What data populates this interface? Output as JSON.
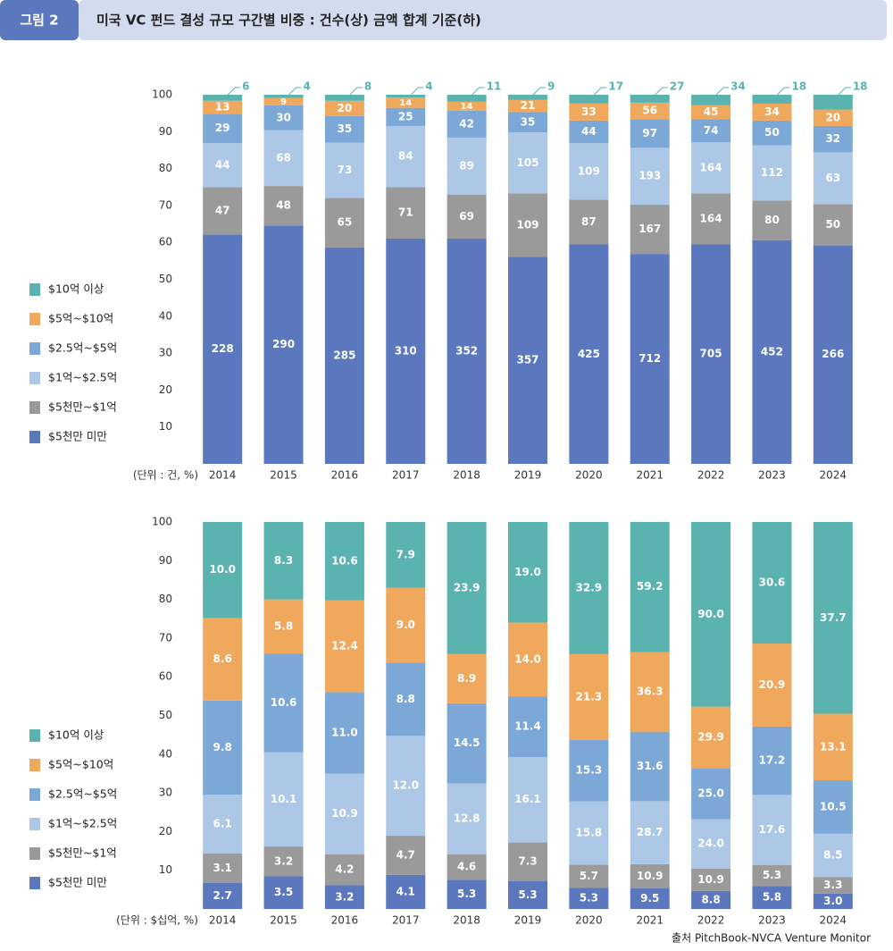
{
  "header": {
    "badge": "그림 2",
    "title": "미국 VC 펀드 결성 규모 구간별 비중 : 건수(상) 금액 합계 기준(하)"
  },
  "chart_data": [
    {
      "type": "bar",
      "stacked": "percent",
      "unit_label": "(단위 : 건, %)",
      "categories": [
        "2014",
        "2015",
        "2016",
        "2017",
        "2018",
        "2019",
        "2020",
        "2021",
        "2022",
        "2023",
        "2024"
      ],
      "ylim": [
        0,
        100
      ],
      "yticks": [
        10,
        20,
        30,
        40,
        50,
        60,
        70,
        80,
        90,
        100
      ],
      "grid": false,
      "series": [
        {
          "name": "$10억 이상",
          "color": "#5bb3b0",
          "values": [
            6,
            4,
            8,
            4,
            11,
            9,
            17,
            27,
            34,
            18,
            18
          ]
        },
        {
          "name": "$5억~$10억",
          "color": "#f0a95c",
          "values": [
            13,
            9,
            20,
            14,
            14,
            21,
            33,
            56,
            45,
            34,
            20
          ]
        },
        {
          "name": "$2.5억~$5억",
          "color": "#7ba8d6",
          "values": [
            29,
            30,
            35,
            25,
            42,
            35,
            44,
            97,
            74,
            50,
            32
          ]
        },
        {
          "name": "$1억~$2.5억",
          "color": "#adc8e6",
          "values": [
            44,
            68,
            73,
            84,
            89,
            105,
            109,
            193,
            164,
            112,
            63
          ]
        },
        {
          "name": "$5천만~$1억",
          "color": "#9a9a9a",
          "values": [
            47,
            48,
            65,
            71,
            69,
            109,
            87,
            167,
            164,
            80,
            50
          ]
        },
        {
          "name": "$5천만 미만",
          "color": "#5b78be",
          "values": [
            228,
            290,
            285,
            310,
            352,
            357,
            425,
            712,
            705,
            452,
            266
          ]
        }
      ]
    },
    {
      "type": "bar",
      "stacked": "percent",
      "unit_label": "(단위 : $십억, %)",
      "categories": [
        "2014",
        "2015",
        "2016",
        "2017",
        "2018",
        "2019",
        "2020",
        "2021",
        "2022",
        "2023",
        "2024"
      ],
      "ylim": [
        0,
        100
      ],
      "yticks": [
        10,
        20,
        30,
        40,
        50,
        60,
        70,
        80,
        90,
        100
      ],
      "grid": false,
      "series": [
        {
          "name": "$10억 이상",
          "color": "#5bb3b0",
          "values": [
            10.0,
            8.3,
            10.6,
            7.9,
            23.9,
            19.0,
            32.9,
            59.2,
            90.0,
            30.6,
            37.7
          ],
          "value_labels": [
            "10.0",
            "8.3",
            "10.6",
            "7.9",
            "23.9",
            "19.0",
            "32.9",
            "59.2",
            "90.0",
            "30.6",
            "37.7"
          ]
        },
        {
          "name": "$5억~$10억",
          "color": "#f0a95c",
          "values": [
            8.6,
            5.8,
            12.4,
            9.0,
            8.9,
            14.0,
            21.3,
            36.3,
            29.9,
            20.9,
            13.1
          ],
          "value_labels": [
            "8.6",
            "5.8",
            "12.4",
            "9.0",
            "8.9",
            "14.0",
            "21.3",
            "36.3",
            "29.9",
            "20.9",
            "13.1"
          ]
        },
        {
          "name": "$2.5억~$5억",
          "color": "#7ba8d6",
          "values": [
            9.8,
            10.6,
            11.0,
            8.8,
            14.5,
            11.4,
            15.3,
            31.6,
            25.0,
            17.2,
            10.5
          ],
          "value_labels": [
            "9.8",
            "10.6",
            "11.0",
            "8.8",
            "14.5",
            "11.4",
            "15.3",
            "31.6",
            "25.0",
            "17.2",
            "10.5"
          ]
        },
        {
          "name": "$1억~$2.5억",
          "color": "#adc8e6",
          "values": [
            6.1,
            10.1,
            10.9,
            12.0,
            12.8,
            16.1,
            15.8,
            28.7,
            24.0,
            17.6,
            8.5
          ],
          "value_labels": [
            "6.1",
            "10.1",
            "10.9",
            "12.0",
            "12.8",
            "16.1",
            "15.8",
            "28.7",
            "24.0",
            "17.6",
            "8.5"
          ]
        },
        {
          "name": "$5천만~$1억",
          "color": "#9a9a9a",
          "values": [
            3.1,
            3.2,
            4.2,
            4.7,
            4.6,
            7.3,
            5.7,
            10.9,
            10.9,
            5.3,
            3.3
          ],
          "value_labels": [
            "3.1",
            "3.2",
            "4.2",
            "4.7",
            "4.6",
            "7.3",
            "5.7",
            "10.9",
            "10.9",
            "5.3",
            "3.3"
          ]
        },
        {
          "name": "$5천만 미만",
          "color": "#5b78be",
          "values": [
            2.7,
            3.5,
            3.2,
            4.1,
            5.3,
            5.3,
            5.3,
            9.5,
            8.8,
            5.8,
            3.0
          ],
          "value_labels": [
            "2.7",
            "3.5",
            "3.2",
            "4.1",
            "5.3",
            "5.3",
            "5.3",
            "9.5",
            "8.8",
            "5.8",
            "3.0"
          ]
        }
      ]
    }
  ],
  "source": "출처 PitchBook-NVCA Venture Monitor"
}
